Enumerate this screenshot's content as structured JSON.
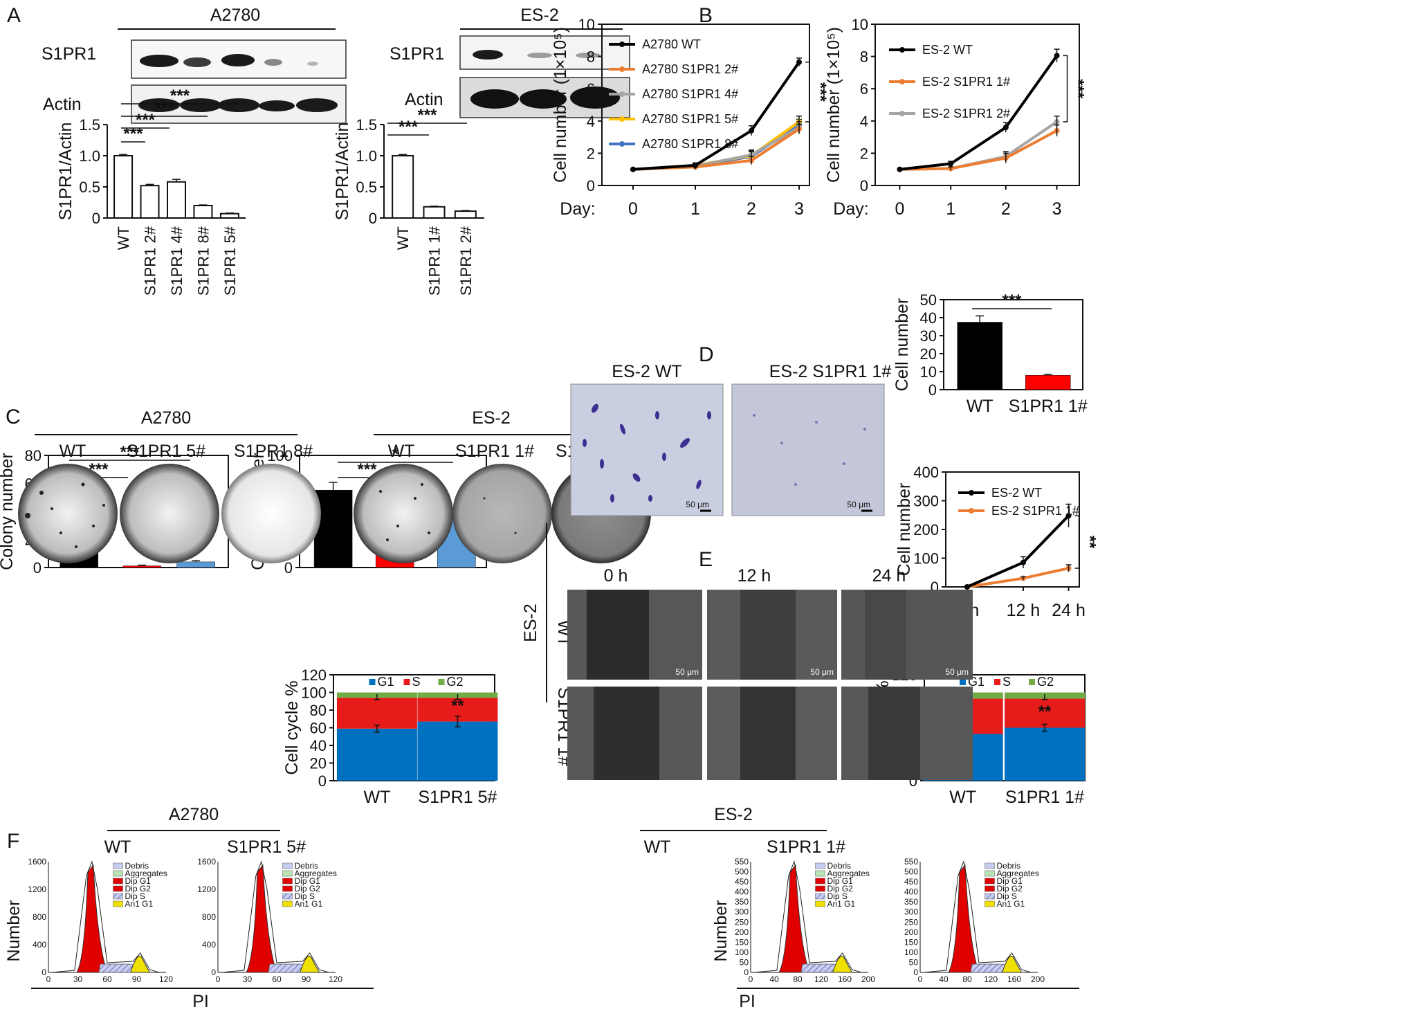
{
  "panels": {
    "A": "A",
    "B": "B",
    "C": "C",
    "D": "D",
    "E": "E",
    "F": "F"
  },
  "western": {
    "a2780": {
      "header": "A2780",
      "bands": [
        "S1PR1",
        "Actin"
      ]
    },
    "es2": {
      "header": "ES-2",
      "bands": [
        "S1PR1",
        "Actin"
      ]
    }
  },
  "colors": {
    "black": "#000000",
    "orange": "#ED7D31",
    "gray": "#A5A5A5",
    "yellow": "#FFC000",
    "blue": "#4472C4",
    "red": "#FF0000",
    "lightblue": "#5B9BD5",
    "cc_blue": "#0070C0",
    "cc_red": "#E81B1B",
    "cc_green": "#70AD47"
  },
  "chart_data": [
    {
      "id": "A-left",
      "type": "bar",
      "ylabel": "S1PR1/Actin",
      "categories": [
        "WT",
        "S1PR1 2#",
        "S1PR1 4#",
        "S1PR1 8#",
        "S1PR1 5#"
      ],
      "values": [
        1.0,
        0.52,
        0.58,
        0.2,
        0.07
      ],
      "errors": [
        0.02,
        0.02,
        0.04,
        0.01,
        0.01
      ],
      "ylim": [
        0,
        1.5
      ],
      "yticks": [
        "0",
        "0.5",
        "1.0",
        "1.5"
      ],
      "yticks_val": [
        0,
        0.5,
        1.0,
        1.5
      ],
      "significance": [
        "***",
        "***",
        "***",
        "***"
      ]
    },
    {
      "id": "A-right",
      "type": "bar",
      "ylabel": "S1PR1/Actin",
      "categories": [
        "WT",
        "S1PR1 1#",
        "S1PR1 2#"
      ],
      "values": [
        1.0,
        0.18,
        0.11
      ],
      "errors": [
        0.02,
        0.01,
        0.01
      ],
      "ylim": [
        0,
        1.5
      ],
      "yticks": [
        "0",
        "0.5",
        "1.0",
        "1.5"
      ],
      "yticks_val": [
        0,
        0.5,
        1.0,
        1.5
      ],
      "significance": [
        "***",
        "***"
      ]
    },
    {
      "id": "B-left",
      "type": "line",
      "ylabel": "Cell number (1×10⁵)",
      "xlabel_prefix": "Day:",
      "x": [
        "0",
        "1",
        "2",
        "3"
      ],
      "ylim": [
        0,
        10
      ],
      "yticks": [
        "0",
        "2",
        "4",
        "6",
        "8",
        "10"
      ],
      "yticks_val": [
        0,
        2,
        4,
        6,
        8,
        10
      ],
      "series": [
        {
          "name": "A2780 WT",
          "values": [
            1.0,
            1.25,
            3.4,
            7.65
          ],
          "errors": [
            0.05,
            0.15,
            0.3,
            0.25
          ]
        },
        {
          "name": "A2780 S1PR1 2#",
          "values": [
            1.0,
            1.15,
            1.55,
            3.5
          ],
          "errors": [
            0.05,
            0.15,
            0.25,
            0.3
          ]
        },
        {
          "name": "A2780 S1PR1 4#",
          "values": [
            1.0,
            1.2,
            1.9,
            3.6
          ],
          "errors": [
            0.05,
            0.15,
            0.3,
            0.35
          ]
        },
        {
          "name": "A2780 S1PR1 5#",
          "values": [
            1.0,
            1.25,
            1.85,
            3.95
          ],
          "errors": [
            0.05,
            0.15,
            0.3,
            0.35
          ]
        },
        {
          "name": "A2780 S1PR1 8#",
          "values": [
            1.0,
            1.2,
            1.8,
            3.75
          ],
          "errors": [
            0.05,
            0.15,
            0.3,
            0.35
          ]
        }
      ],
      "significance": "***"
    },
    {
      "id": "B-right",
      "type": "line",
      "ylabel": "Cell number (1×10⁵)",
      "xlabel_prefix": "Day:",
      "x": [
        "0",
        "1",
        "2",
        "3"
      ],
      "ylim": [
        0,
        10
      ],
      "yticks": [
        "0",
        "2",
        "4",
        "6",
        "8",
        "10"
      ],
      "yticks_val": [
        0,
        2,
        4,
        6,
        8,
        10
      ],
      "series": [
        {
          "name": "ES-2 WT",
          "values": [
            1.0,
            1.35,
            3.6,
            8.05
          ],
          "errors": [
            0.05,
            0.15,
            0.3,
            0.4
          ]
        },
        {
          "name": "ES-2 S1PR1 1#",
          "values": [
            1.0,
            1.05,
            1.7,
            3.4
          ],
          "errors": [
            0.05,
            0.1,
            0.3,
            0.35
          ]
        },
        {
          "name": "ES-2 S1PR1 2#",
          "values": [
            1.0,
            1.05,
            1.8,
            3.95
          ],
          "errors": [
            0.05,
            0.1,
            0.3,
            0.35
          ]
        }
      ],
      "significance": "***"
    },
    {
      "id": "C-left",
      "type": "bar",
      "ylabel": "Colony number",
      "categories": [
        "WT",
        "S1PR1 5#",
        "S1PR1 8#"
      ],
      "values": [
        56,
        1.2,
        4
      ],
      "errors": [
        5,
        0.5,
        0.8
      ],
      "ylim": [
        0,
        80
      ],
      "yticks": [
        "0",
        "20",
        "40",
        "60",
        "80"
      ],
      "yticks_val": [
        0,
        20,
        40,
        60,
        80
      ],
      "significance": [
        "***",
        "***"
      ]
    },
    {
      "id": "C-right",
      "type": "bar",
      "ylabel": "Colony number",
      "categories": [
        "WT",
        "S1PR1 1#",
        "S1PR1 2#"
      ],
      "values": [
        69,
        28,
        46
      ],
      "errors": [
        7,
        3,
        5
      ],
      "ylim": [
        0,
        100
      ],
      "yticks": [
        "0",
        "20",
        "40",
        "60",
        "80",
        "100"
      ],
      "yticks_val": [
        0,
        20,
        40,
        60,
        80,
        100
      ],
      "significance": [
        "***",
        "*"
      ]
    },
    {
      "id": "D",
      "type": "bar",
      "ylabel": "Cell number",
      "categories": [
        "WT",
        "S1PR1 1#"
      ],
      "values": [
        37.5,
        8
      ],
      "errors": [
        3.5,
        0.5
      ],
      "ylim": [
        0,
        50
      ],
      "yticks": [
        "0",
        "10",
        "20",
        "30",
        "40",
        "50"
      ],
      "yticks_val": [
        0,
        10,
        20,
        30,
        40,
        50
      ],
      "significance": [
        "***"
      ]
    },
    {
      "id": "E",
      "type": "line",
      "ylabel": "Cell number",
      "x": [
        "0 h",
        "12 h",
        "24 h"
      ],
      "ylim": [
        0,
        400
      ],
      "yticks": [
        "0",
        "100",
        "200",
        "300",
        "400"
      ],
      "yticks_val": [
        0,
        100,
        200,
        300,
        400
      ],
      "series": [
        {
          "name": "ES-2 WT",
          "values": [
            0,
            85,
            248
          ],
          "errors": [
            0,
            20,
            40
          ]
        },
        {
          "name": "ES-2 S1PR1 1#",
          "values": [
            0,
            30,
            65
          ],
          "errors": [
            0,
            5,
            12
          ]
        }
      ],
      "significance": "**"
    },
    {
      "id": "F-left-bar",
      "type": "bar",
      "stacked": true,
      "ylabel": "Cell cycle %",
      "categories": [
        "WT",
        "S1PR1 5#"
      ],
      "legend": [
        "G1",
        "S",
        "G2"
      ],
      "series": [
        {
          "name": "G1",
          "values": [
            59,
            67
          ]
        },
        {
          "name": "S",
          "values": [
            35,
            27
          ]
        },
        {
          "name": "G2",
          "values": [
            6,
            6
          ]
        }
      ],
      "errors": [
        4,
        6
      ],
      "ylim": [
        0,
        120
      ],
      "yticks": [
        "0",
        "20",
        "40",
        "60",
        "80",
        "100",
        "120"
      ],
      "yticks_val": [
        0,
        20,
        40,
        60,
        80,
        100,
        120
      ],
      "significance": "**"
    },
    {
      "id": "F-right-bar",
      "type": "bar",
      "stacked": true,
      "ylabel": "Cell cycle %",
      "categories": [
        "WT",
        "S1PR1 1#"
      ],
      "legend": [
        "G1",
        "S",
        "G2"
      ],
      "series": [
        {
          "name": "G1",
          "values": [
            53,
            60
          ]
        },
        {
          "name": "S",
          "values": [
            40,
            33
          ]
        },
        {
          "name": "G2",
          "values": [
            7,
            7
          ]
        }
      ],
      "errors": [
        4,
        4
      ],
      "ylim": [
        0,
        120
      ],
      "yticks": [
        "0",
        "20",
        "40",
        "60",
        "80",
        "100",
        "120"
      ],
      "yticks_val": [
        0,
        20,
        40,
        60,
        80,
        100,
        120
      ],
      "significance": "**"
    }
  ],
  "colony": {
    "a2780": {
      "header": "A2780",
      "labels": [
        "WT",
        "S1PR1 5#",
        "S1PR1 8#"
      ]
    },
    "es2": {
      "header": "ES-2",
      "labels": [
        "WT",
        "S1PR1 1#",
        "S1PR1 2#"
      ]
    }
  },
  "transwell": {
    "labels": [
      "ES-2 WT",
      "ES-2 S1PR1 1#"
    ],
    "scale": "50 μm"
  },
  "wound": {
    "times": [
      "0 h",
      "12 h",
      "24 h"
    ],
    "group": "ES-2",
    "rows": [
      "WT",
      "S1PR1 1#"
    ],
    "scale": "50 μm"
  },
  "flow": {
    "a2780": {
      "header": "A2780",
      "labels": [
        "WT",
        "S1PR1 5#"
      ],
      "yticks": [
        "0",
        "400",
        "800",
        "1200",
        "1600"
      ],
      "xticks": [
        "0",
        "30",
        "60",
        "90",
        "120"
      ]
    },
    "es2": {
      "header": "ES-2",
      "labels": [
        "WT",
        "S1PR1 1#"
      ],
      "yticks": [
        "0",
        "50",
        "100",
        "150",
        "200",
        "250",
        "300",
        "350",
        "400",
        "450",
        "500",
        "550"
      ],
      "xticks": [
        "0",
        "40",
        "80",
        "120",
        "160",
        "200"
      ]
    },
    "ylabel": "Number",
    "xlabel": "PI",
    "legend": [
      "Debris",
      "Aggregates",
      "Dip G1",
      "Dip G2",
      "Dip S",
      "An1 G1"
    ]
  }
}
